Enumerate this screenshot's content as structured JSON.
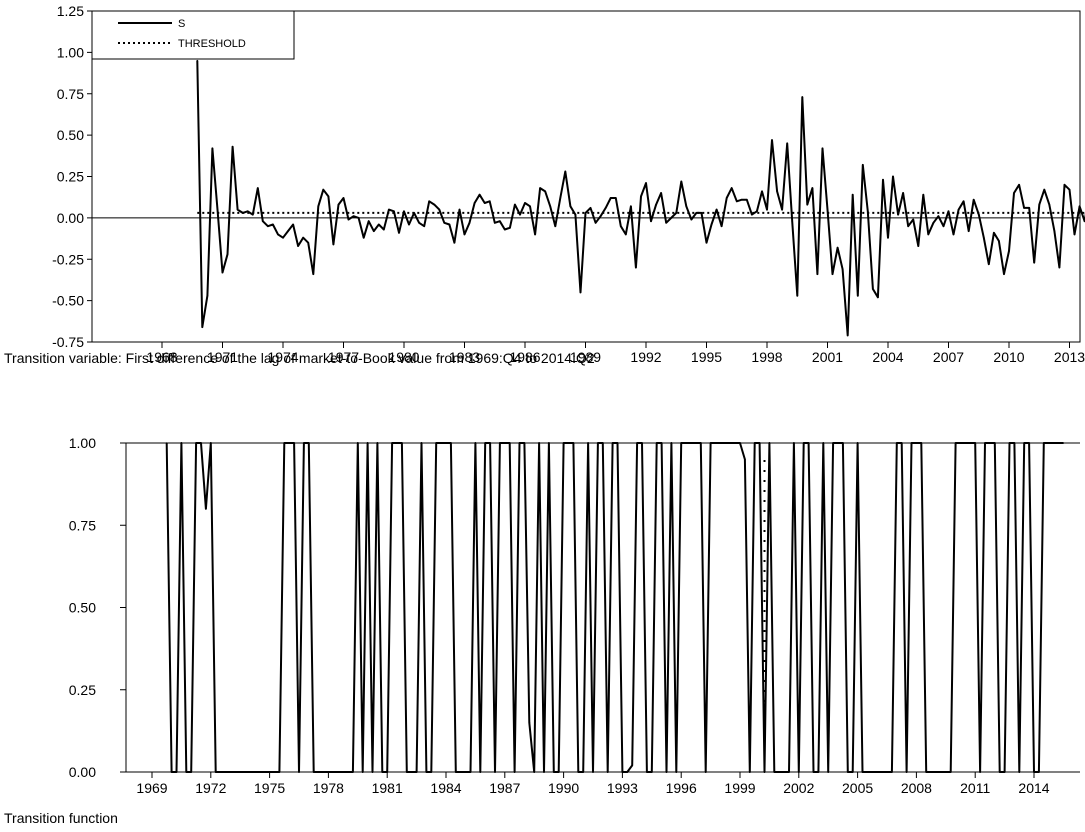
{
  "chart_data": [
    {
      "type": "line",
      "caption": "Transition variable: First difference of the lag of market-to-Book value from 1969:Q4 to 2014:Q2",
      "ylim": [
        -0.75,
        1.25
      ],
      "yticks": [
        "-0.75",
        "-0.50",
        "-0.25",
        "0.00",
        "0.25",
        "0.50",
        "0.75",
        "1.00",
        "1.25"
      ],
      "xticks": [
        "1968",
        "1971",
        "1974",
        "1977",
        "1980",
        "1983",
        "1986",
        "1989",
        "1992",
        "1995",
        "1998",
        "2001",
        "2004",
        "2007",
        "2010",
        "2013"
      ],
      "legend": [
        "S",
        "THRESHOLD"
      ],
      "legend_position": "top-left",
      "zero_line": true,
      "threshold": 0.03,
      "series": [
        {
          "name": "S",
          "x_start": 1969.75,
          "x_step": 0.25,
          "values": [
            0.95,
            -0.66,
            -0.47,
            0.42,
            0.05,
            -0.33,
            -0.22,
            0.43,
            0.05,
            0.03,
            0.04,
            0.02,
            0.18,
            -0.02,
            -0.05,
            -0.04,
            -0.1,
            -0.12,
            -0.08,
            -0.04,
            -0.17,
            -0.12,
            -0.15,
            -0.34,
            0.07,
            0.17,
            0.13,
            -0.16,
            0.08,
            0.12,
            -0.01,
            0.01,
            0.0,
            -0.12,
            -0.02,
            -0.08,
            -0.04,
            -0.07,
            0.05,
            0.04,
            -0.09,
            0.04,
            -0.04,
            0.03,
            -0.03,
            -0.05,
            0.1,
            0.08,
            0.05,
            -0.03,
            -0.04,
            -0.15,
            0.05,
            -0.1,
            -0.03,
            0.09,
            0.14,
            0.09,
            0.1,
            -0.03,
            -0.02,
            -0.07,
            -0.06,
            0.08,
            0.02,
            0.09,
            0.07,
            -0.1,
            0.18,
            0.16,
            0.07,
            -0.05,
            0.12,
            0.28,
            0.07,
            0.02,
            -0.45,
            0.03,
            0.06,
            -0.03,
            0.01,
            0.06,
            0.12,
            0.12,
            -0.05,
            -0.1,
            0.07,
            -0.3,
            0.13,
            0.21,
            -0.02,
            0.08,
            0.15,
            -0.03,
            0.0,
            0.03,
            0.22,
            0.07,
            -0.01,
            0.03,
            0.03,
            -0.15,
            -0.04,
            0.05,
            -0.05,
            0.12,
            0.18,
            0.1,
            0.11,
            0.11,
            0.02,
            0.04,
            0.16,
            0.05,
            0.47,
            0.16,
            0.05,
            0.45,
            -0.02,
            -0.47,
            0.73,
            0.08,
            0.18,
            -0.34,
            0.42,
            0.05,
            -0.34,
            -0.18,
            -0.31,
            -0.71,
            0.14,
            -0.47,
            0.32,
            0.04,
            -0.43,
            -0.48,
            0.23,
            -0.12,
            0.25,
            0.02,
            0.15,
            -0.05,
            -0.01,
            -0.17,
            0.14,
            -0.1,
            -0.03,
            0.01,
            -0.05,
            0.04,
            -0.1,
            0.05,
            0.1,
            -0.08,
            0.11,
            0.02,
            -0.12,
            -0.28,
            -0.09,
            -0.14,
            -0.34,
            -0.2,
            0.15,
            0.2,
            0.06,
            0.06,
            -0.27,
            0.08,
            0.17,
            0.08,
            -0.08,
            -0.3,
            0.2,
            0.17,
            -0.1,
            0.07,
            -0.02,
            0.16,
            0.06,
            0.05,
            0.15,
            0.03,
            0.05
          ]
        },
        {
          "name": "THRESHOLD",
          "x_start": 1969.75,
          "x_end": 2014.25,
          "value": 0.03
        }
      ]
    },
    {
      "type": "line",
      "caption": "Transition function",
      "ylim": [
        0,
        1
      ],
      "yticks": [
        "0.00",
        "0.25",
        "0.50",
        "0.75",
        "1.00"
      ],
      "xticks": [
        "1969",
        "1972",
        "1975",
        "1978",
        "1981",
        "1984",
        "1987",
        "1990",
        "1993",
        "1996",
        "1999",
        "2002",
        "2005",
        "2008",
        "2011",
        "2014"
      ],
      "top_line": true,
      "dotted_segment": {
        "x": 2000.25,
        "y_from": 0.0,
        "y_to": 0.96
      },
      "series": [
        {
          "x_start": 1969.75,
          "x_step": 0.25,
          "values": [
            1,
            0,
            0,
            1,
            0,
            0,
            1,
            1,
            0.8,
            1,
            0,
            0,
            0,
            0,
            0,
            0,
            0,
            0,
            0,
            0,
            0,
            0,
            0,
            0,
            1,
            1,
            1,
            0,
            1,
            1,
            0,
            0,
            0,
            0,
            0,
            0,
            0,
            0,
            0,
            1,
            0,
            1,
            0,
            1,
            0,
            0,
            1,
            1,
            1,
            0,
            0,
            0,
            1,
            0,
            0,
            1,
            1,
            1,
            1,
            0,
            0,
            0,
            0,
            1,
            0,
            1,
            1,
            0,
            1,
            1,
            1,
            0,
            1,
            1,
            0.15,
            0,
            1,
            0,
            1,
            0,
            0,
            1,
            1,
            1,
            0,
            0,
            1,
            0,
            1,
            1,
            0,
            1,
            1,
            0,
            0,
            0.02,
            1,
            1,
            0,
            0,
            1,
            1,
            0,
            1,
            0,
            1,
            1,
            1,
            1,
            1,
            0,
            1,
            1,
            1,
            1,
            1,
            1,
            1,
            0.95,
            0,
            1,
            1,
            0,
            1,
            0,
            0,
            0,
            0,
            1,
            0,
            1,
            1,
            0,
            0,
            1,
            0,
            1,
            1,
            1,
            0,
            0,
            1,
            0,
            0,
            0,
            0,
            0,
            0,
            0,
            1,
            1,
            0,
            1,
            1,
            1,
            0,
            0,
            0,
            0,
            0,
            0,
            1,
            1,
            1,
            1,
            1,
            0,
            1,
            1,
            1,
            0,
            0,
            1,
            1,
            0,
            1,
            1,
            0,
            0,
            1,
            1,
            1,
            1,
            1
          ]
        }
      ]
    }
  ]
}
